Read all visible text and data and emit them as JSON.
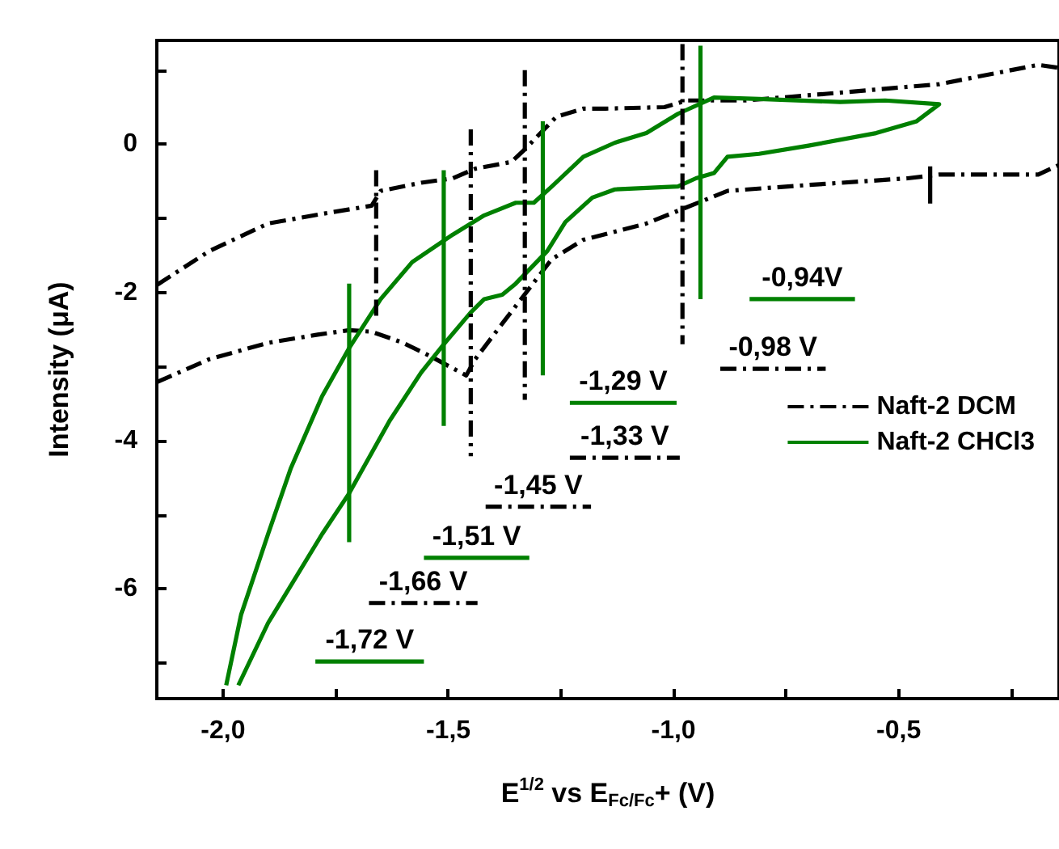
{
  "chart_data": {
    "type": "line",
    "xlabel": "E$^{1/2}$ vs E$_{Fc/Fc}$+ (V)",
    "ylabel": "Intensity (μA)",
    "xlim": [
      -2.147,
      -0.144
    ],
    "ylim": [
      -7.48,
      1.4
    ],
    "xticks": [
      {
        "value": -2,
        "label": "-2,0"
      },
      {
        "value": -1.75,
        "label": null
      },
      {
        "value": -1.5,
        "label": "-1,5"
      },
      {
        "value": -1.25,
        "label": null
      },
      {
        "value": -1,
        "label": "-1,0"
      },
      {
        "value": -0.75,
        "label": null
      },
      {
        "value": -0.5,
        "label": "-0,5"
      },
      {
        "value": -0.25,
        "label": null
      }
    ],
    "yticks": [
      {
        "value": 1,
        "label": null
      },
      0,
      {
        "value": -1,
        "label": null
      },
      -2,
      {
        "value": -3,
        "label": null
      },
      -4,
      {
        "value": -5,
        "label": null
      },
      -6,
      {
        "value": -7,
        "label": null
      }
    ],
    "grid": false,
    "legend": "right",
    "marker": "none",
    "series": [
      {
        "name": "Naft-2 DCM",
        "color": "#000000",
        "line_style": "dashdot",
        "x": [
          -2.147,
          -2.03,
          -1.9,
          -1.78,
          -1.67,
          -1.65,
          -1.56,
          -1.49,
          -1.44,
          -1.36,
          -1.33,
          -1.26,
          -1.2,
          -1.15,
          -1.02,
          -0.97,
          -0.84,
          -0.66,
          -0.41,
          -0.19,
          -0.144
        ],
        "values": [
          -1.9,
          -1.44,
          -1.07,
          -0.94,
          -0.83,
          -0.63,
          -0.52,
          -0.46,
          -0.33,
          -0.24,
          -0.07,
          0.37,
          0.48,
          0.48,
          0.5,
          0.59,
          0.59,
          0.68,
          0.81,
          1.07,
          1.03
        ]
      },
      {
        "color": "#000000",
        "line_style": "dashdot",
        "x": [
          -2.147,
          -2.03,
          -1.9,
          -1.79,
          -1.72,
          -1.67,
          -1.6,
          -1.54,
          -1.46,
          -1.44,
          -1.38,
          -1.27,
          -1.2,
          -1.06,
          -0.97,
          -0.88,
          -0.7,
          -0.48,
          -0.41,
          -0.19,
          -0.144
        ],
        "values": [
          -3.21,
          -2.9,
          -2.68,
          -2.57,
          -2.51,
          -2.53,
          -2.68,
          -2.86,
          -3.12,
          -2.9,
          -2.42,
          -1.55,
          -1.29,
          -1.07,
          -0.85,
          -0.63,
          -0.55,
          -0.46,
          -0.41,
          -0.41,
          -0.28
        ]
      },
      {
        "name": "Naft-2 CHCl3",
        "color": "#008000",
        "line_style": "solid",
        "x": [
          -1.993,
          -1.96,
          -1.9,
          -1.85,
          -1.78,
          -1.72,
          -1.65,
          -1.58,
          -1.49,
          -1.42,
          -1.35,
          -1.31,
          -1.27,
          -1.2,
          -1.13,
          -1.06,
          -0.99,
          -0.91,
          -0.81,
          -0.63,
          -0.53,
          -0.41,
          -0.46,
          -0.55,
          -0.7,
          -0.81,
          -0.88,
          -0.91,
          -0.95,
          -0.99,
          -1.13,
          -1.18,
          -1.24,
          -1.28,
          -1.35,
          -1.38,
          -1.42,
          -1.45,
          -1.51,
          -1.56,
          -1.63,
          -1.72,
          -1.78,
          -1.9,
          -1.966
        ],
        "values": [
          -7.3,
          -6.35,
          -5.26,
          -4.38,
          -3.4,
          -2.75,
          -2.09,
          -1.59,
          -1.22,
          -0.96,
          -0.79,
          -0.79,
          -0.57,
          -0.17,
          0.02,
          0.15,
          0.41,
          0.63,
          0.61,
          0.57,
          0.59,
          0.54,
          0.31,
          0.15,
          -0.02,
          -0.13,
          -0.17,
          -0.39,
          -0.46,
          -0.57,
          -0.61,
          -0.72,
          -1.05,
          -1.44,
          -1.88,
          -2.03,
          -2.09,
          -2.27,
          -2.7,
          -3.08,
          -3.73,
          -4.71,
          -5.26,
          -6.46,
          -7.3
        ]
      },
      {
        "color": "#000000",
        "line_style": "dashdot",
        "x": [
          -1.66,
          -1.66
        ],
        "values": [
          -0.35,
          -2.36
        ]
      },
      {
        "color": "#000000",
        "line_style": "dashdot",
        "x": [
          -1.45,
          -1.45
        ],
        "values": [
          0.2,
          -4.21
        ]
      },
      {
        "color": "#000000",
        "line_style": "dashdot",
        "x": [
          -1.33,
          -1.33
        ],
        "values": [
          1.0,
          -3.45
        ]
      },
      {
        "color": "#000000",
        "line_style": "dashdot",
        "x": [
          -0.98,
          -0.98
        ],
        "values": [
          1.35,
          -2.7
        ]
      },
      {
        "color": "#000000",
        "line_style": "solid",
        "x": [
          -0.43,
          -0.43
        ],
        "values": [
          -0.3,
          -0.8
        ]
      },
      {
        "color": "#008000",
        "line_style": "solid",
        "x": [
          -1.72,
          -1.72
        ],
        "values": [
          -1.88,
          -5.37
        ]
      },
      {
        "color": "#008000",
        "line_style": "solid",
        "x": [
          -1.51,
          -1.51
        ],
        "values": [
          -0.35,
          -3.8
        ]
      },
      {
        "color": "#008000",
        "line_style": "solid",
        "x": [
          -1.29,
          -1.29
        ],
        "values": [
          0.31,
          -3.12
        ]
      },
      {
        "color": "#008000",
        "line_style": "solid",
        "x": [
          -0.94,
          -0.94
        ],
        "values": [
          1.33,
          -2.09
        ]
      },
      {
        "color": "#008000",
        "line_style": "solid",
        "x": [
          -1.795,
          -1.554
        ],
        "values": [
          -6.98,
          -6.98
        ]
      },
      {
        "color": "#000000",
        "line_style": "dashdot",
        "x": [
          -1.676,
          -1.435
        ],
        "values": [
          -6.19,
          -6.19
        ]
      },
      {
        "color": "#008000",
        "line_style": "solid",
        "x": [
          -1.554,
          -1.32
        ],
        "values": [
          -5.58,
          -5.58
        ]
      },
      {
        "color": "#000000",
        "line_style": "dashdot",
        "x": [
          -1.417,
          -1.183
        ],
        "values": [
          -4.89,
          -4.89
        ]
      },
      {
        "color": "#000000",
        "line_style": "dashdot",
        "x": [
          -1.23,
          -0.986
        ],
        "values": [
          -4.23,
          -4.23
        ]
      },
      {
        "color": "#008000",
        "line_style": "solid",
        "x": [
          -1.23,
          -0.993
        ],
        "values": [
          -3.49,
          -3.49
        ]
      },
      {
        "color": "#000000",
        "line_style": "dashdot",
        "x": [
          -0.896,
          -0.662
        ],
        "values": [
          -3.03,
          -3.03
        ]
      },
      {
        "color": "#008000",
        "line_style": "solid",
        "x": [
          -0.831,
          -0.597
        ],
        "values": [
          -2.09,
          -2.09
        ]
      }
    ],
    "annotations": [
      {
        "text": "-1,72 V",
        "x": -1.6745,
        "y": -6.98
      },
      {
        "text": "-1,66 V",
        "x": -1.5555,
        "y": -6.19
      },
      {
        "text": "-1,51 V",
        "x": -1.437,
        "y": -5.58
      },
      {
        "text": "-1,45 V",
        "x": -1.3,
        "y": -4.89
      },
      {
        "text": "-1,33 V",
        "x": -1.108,
        "y": -4.23
      },
      {
        "text": "-1,29 V",
        "x": -1.1115,
        "y": -3.49
      },
      {
        "text": "-0,98 V",
        "x": -0.779,
        "y": -3.03
      },
      {
        "text": "-0,94V",
        "x": -0.714,
        "y": -2.09
      }
    ]
  }
}
